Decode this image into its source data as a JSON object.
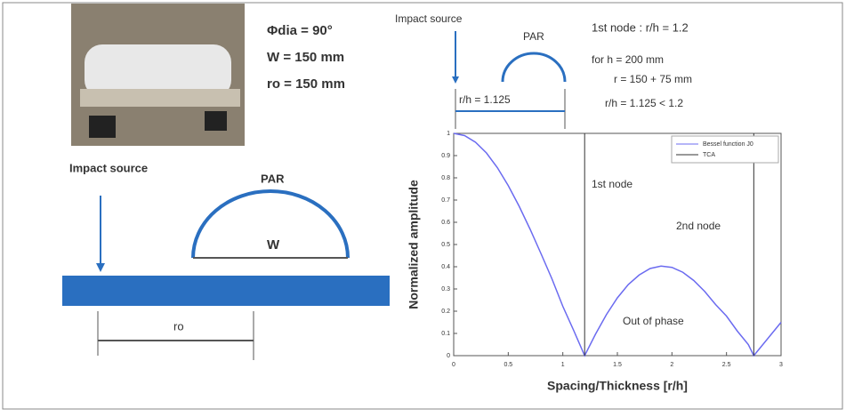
{
  "photo": {
    "labels": [
      "Φdia = 90°",
      "W = 150 mm",
      "ro = 150 mm"
    ]
  },
  "left_diagram": {
    "impact": "Impact source",
    "par": "PAR",
    "w": "W",
    "r": "ro"
  },
  "top_diagram": {
    "impact": "Impact source",
    "par": "PAR",
    "ratio": "r/h = 1.125"
  },
  "notes": [
    "1st node : r/h = 1.2",
    "for h = 200 mm",
    "r = 150 + 75  mm",
    "r/h = 1.125 < 1.2"
  ],
  "chart_data": {
    "type": "line",
    "ylabel": "Normalized amplitude",
    "xlabel": "Spacing/Thickness [r/h]",
    "annotations": [
      "1st node",
      "2nd node",
      "Out of phase"
    ],
    "x": [
      0,
      0.1,
      0.2,
      0.3,
      0.4,
      0.5,
      0.6,
      0.7,
      0.8,
      0.9,
      1.0,
      1.1,
      1.2,
      1.3,
      1.4,
      1.5,
      1.6,
      1.7,
      1.8,
      1.9,
      2.0,
      2.1,
      2.2,
      2.3,
      2.4,
      2.5,
      2.6,
      2.7,
      2.75,
      2.8,
      2.9,
      3.0
    ],
    "series": [
      {
        "name": "Bessel function J0",
        "color": "#6b6bf0",
        "values": [
          1,
          0.99,
          0.96,
          0.912,
          0.846,
          0.765,
          0.672,
          0.569,
          0.459,
          0.346,
          0.222,
          0.113,
          0,
          0.097,
          0.185,
          0.26,
          0.32,
          0.363,
          0.392,
          0.403,
          0.397,
          0.375,
          0.338,
          0.289,
          0.23,
          0.178,
          0.11,
          0.05,
          0,
          0.03,
          0.09,
          0.15
        ]
      }
    ],
    "vlines": {
      "name": "TCA",
      "color": "#333333",
      "x": [
        1.2,
        2.75
      ]
    },
    "xlim": [
      0,
      3
    ],
    "ylim": [
      0,
      1
    ],
    "xticks": [
      0,
      0.5,
      1,
      1.5,
      2,
      2.5,
      3
    ],
    "yticks": [
      0,
      0.1,
      0.2,
      0.3,
      0.4,
      0.5,
      0.6,
      0.7,
      0.8,
      0.9,
      1
    ]
  }
}
